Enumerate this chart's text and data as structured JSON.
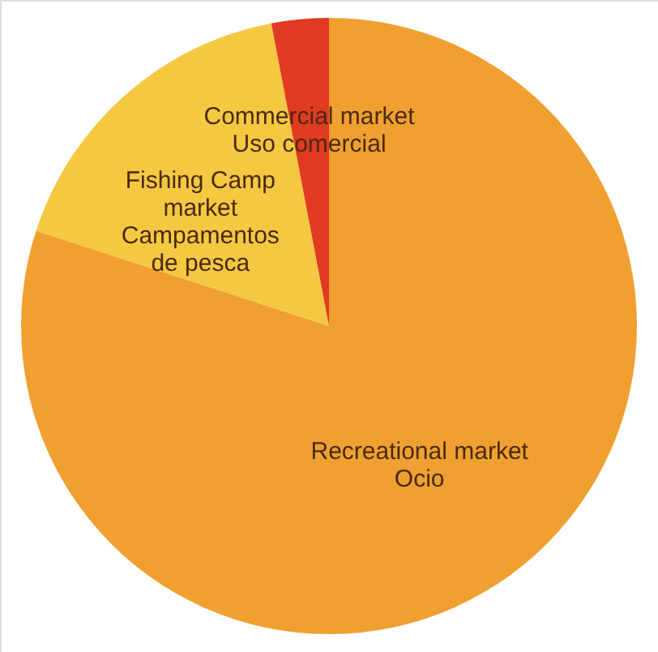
{
  "chart_data": {
    "type": "pie",
    "categories": [
      "Recreational market\nOcio",
      "Fishing Camp\nmarket\nCampamentos\nde pesca",
      "Commercial market\nUso comercial"
    ],
    "values": [
      80,
      17,
      3
    ],
    "colors": [
      "#f0a030",
      "#f5c842",
      "#e03a20"
    ]
  }
}
